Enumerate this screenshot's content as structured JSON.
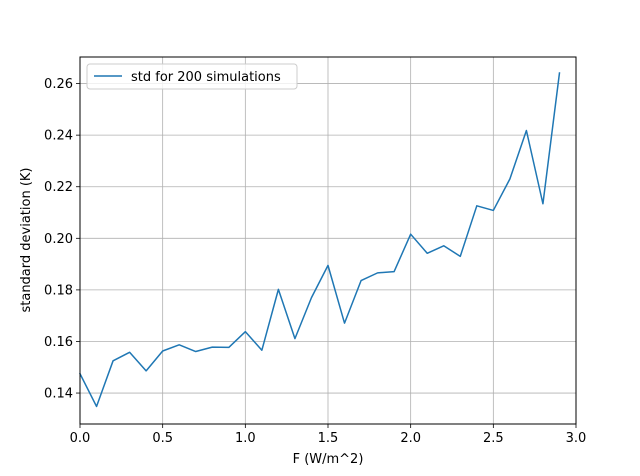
{
  "chart_data": {
    "type": "line",
    "xlabel": "F (W/m^2)",
    "ylabel": "standard deviation (K)",
    "xlim": [
      0.0,
      3.0
    ],
    "ylim": [
      0.128,
      0.2703
    ],
    "xticks": [
      0.0,
      0.5,
      1.0,
      1.5,
      2.0,
      2.5,
      3.0
    ],
    "xtick_labels": [
      "0.0",
      "0.5",
      "1.0",
      "1.5",
      "2.0",
      "2.5",
      "3.0"
    ],
    "yticks": [
      0.14,
      0.16,
      0.18,
      0.2,
      0.22,
      0.24,
      0.26
    ],
    "ytick_labels": [
      "0.14",
      "0.16",
      "0.18",
      "0.20",
      "0.22",
      "0.24",
      "0.26"
    ],
    "grid": true,
    "legend_position": "upper-left",
    "series": [
      {
        "name": "std for 200 simulations",
        "color": "#1f77b4",
        "x": [
          0.0,
          0.1,
          0.2,
          0.3,
          0.4,
          0.5,
          0.6,
          0.7,
          0.8,
          0.9,
          1.0,
          1.1,
          1.2,
          1.3,
          1.4,
          1.5,
          1.6,
          1.7,
          1.8,
          1.9,
          2.0,
          2.1,
          2.2,
          2.3,
          2.4,
          2.5,
          2.6,
          2.7,
          2.8,
          2.9
        ],
        "y": [
          0.1475,
          0.1348,
          0.1525,
          0.1558,
          0.1486,
          0.1563,
          0.1587,
          0.1561,
          0.1578,
          0.1577,
          0.1638,
          0.1566,
          0.1802,
          0.1611,
          0.177,
          0.1895,
          0.1671,
          0.1836,
          0.1866,
          0.1871,
          0.2016,
          0.1942,
          0.1971,
          0.193,
          0.2126,
          0.2108,
          0.223,
          0.2418,
          0.2134,
          0.2641
        ]
      }
    ]
  }
}
